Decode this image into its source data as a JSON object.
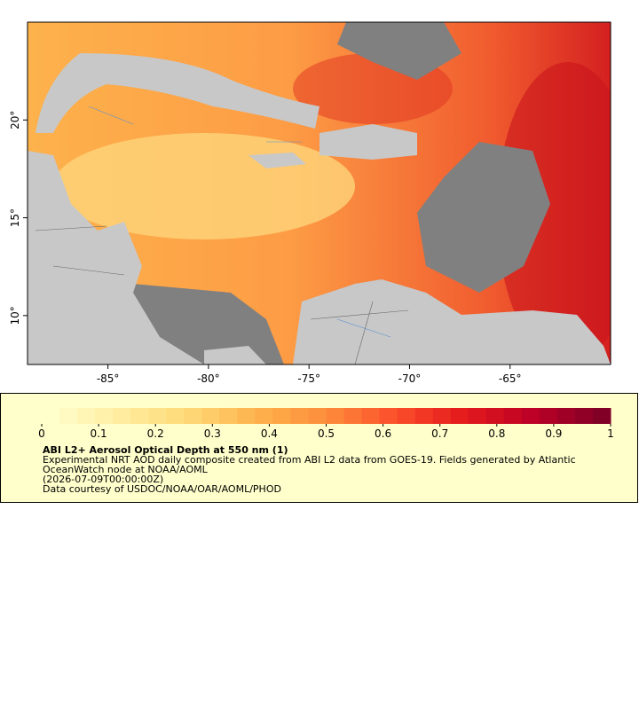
{
  "map": {
    "xlim": [
      -89,
      -60
    ],
    "ylim": [
      7.5,
      25
    ],
    "xticks": [
      {
        "value": -85,
        "label": "-85°"
      },
      {
        "value": -80,
        "label": "-80°"
      },
      {
        "value": -75,
        "label": "-75°"
      },
      {
        "value": -70,
        "label": "-70°"
      },
      {
        "value": -65,
        "label": "-65°"
      }
    ],
    "yticks": [
      {
        "value": 10,
        "label": "10°"
      },
      {
        "value": 15,
        "label": "15°"
      },
      {
        "value": 20,
        "label": "20°"
      }
    ]
  },
  "colorbar": {
    "range": [
      0,
      1
    ],
    "ticks": [
      0,
      0.1,
      0.2,
      0.3,
      0.4,
      0.5,
      0.6,
      0.7,
      0.8,
      0.9,
      1
    ],
    "colors": [
      "#ffffcc",
      "#ffeda0",
      "#fed976",
      "#feb24c",
      "#fd8d3c",
      "#fc4e2a",
      "#e31a1c",
      "#bd0026",
      "#800026"
    ]
  },
  "legend": {
    "title": "ABI L2+ Aerosol Optical Depth at 550 nm (1)",
    "lines": [
      "Experimental NRT AOD daily composite created from ABI L2 data from GOES-19. Fields generated by Atlantic",
      "OceanWatch node at NOAA/AOML",
      "(2026-07-09T00:00:00Z)",
      "Data courtesy of USDOC/NOAA/OAR/AOML/PHOD"
    ]
  }
}
